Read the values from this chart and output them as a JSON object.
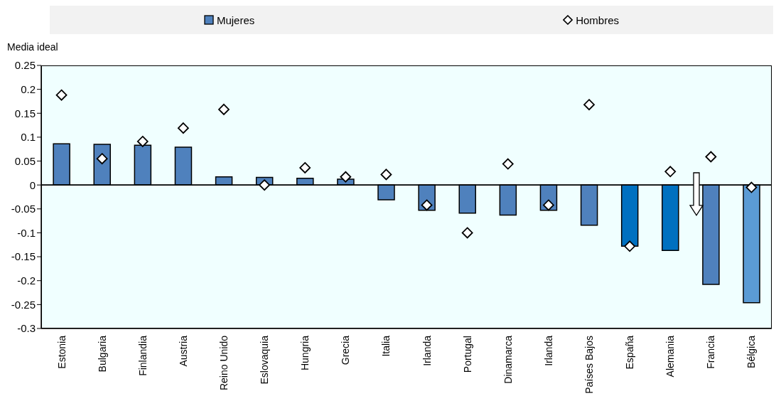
{
  "chart_data": {
    "type": "bar",
    "ylabel": "Media ideal",
    "categories": [
      "Estonia",
      "Bulgaria",
      "Finlandia",
      "Austria",
      "Reino Unido",
      "Eslovaquia",
      "Hungria",
      "Grecia",
      "Italia",
      "Irlanda",
      "Portugal",
      "Dinamarca",
      "Irlanda",
      "Países Bajos",
      "España",
      "Alemania",
      "Francia",
      "Bélgica"
    ],
    "series": [
      {
        "name": "Mujeres",
        "color": "#4f81bd",
        "colors": [
          "#4f81bd",
          "#4f81bd",
          "#4f81bd",
          "#4f81bd",
          "#4f81bd",
          "#4f81bd",
          "#4f81bd",
          "#4f81bd",
          "#4f81bd",
          "#4f81bd",
          "#4f81bd",
          "#4f81bd",
          "#4f81bd",
          "#4f81bd",
          "#0070c0",
          "#0070c0",
          "#4f81bd",
          "#5b9bd5"
        ],
        "values": [
          0.086,
          0.085,
          0.083,
          0.079,
          0.017,
          0.016,
          0.014,
          0.012,
          -0.031,
          -0.053,
          -0.059,
          -0.063,
          -0.053,
          -0.084,
          -0.128,
          -0.137,
          -0.208,
          -0.246
        ]
      },
      {
        "name": "Hombres",
        "type": "scatter",
        "color": "#ffffff",
        "marker": "diamond",
        "values": [
          0.188,
          0.055,
          0.091,
          0.119,
          0.158,
          0,
          0.036,
          0.017,
          0.022,
          -0.042,
          -0.1,
          0.044,
          -0.042,
          0.168,
          -0.128,
          0.028,
          0.059,
          -0.005
        ]
      }
    ],
    "ylim": [
      -0.3,
      0.25
    ],
    "yticks": [
      -0.3,
      -0.25,
      -0.2,
      -0.15,
      -0.1,
      -0.05,
      0,
      0.05,
      0.1,
      0.15,
      0.2,
      0.25
    ],
    "legend": "top"
  }
}
